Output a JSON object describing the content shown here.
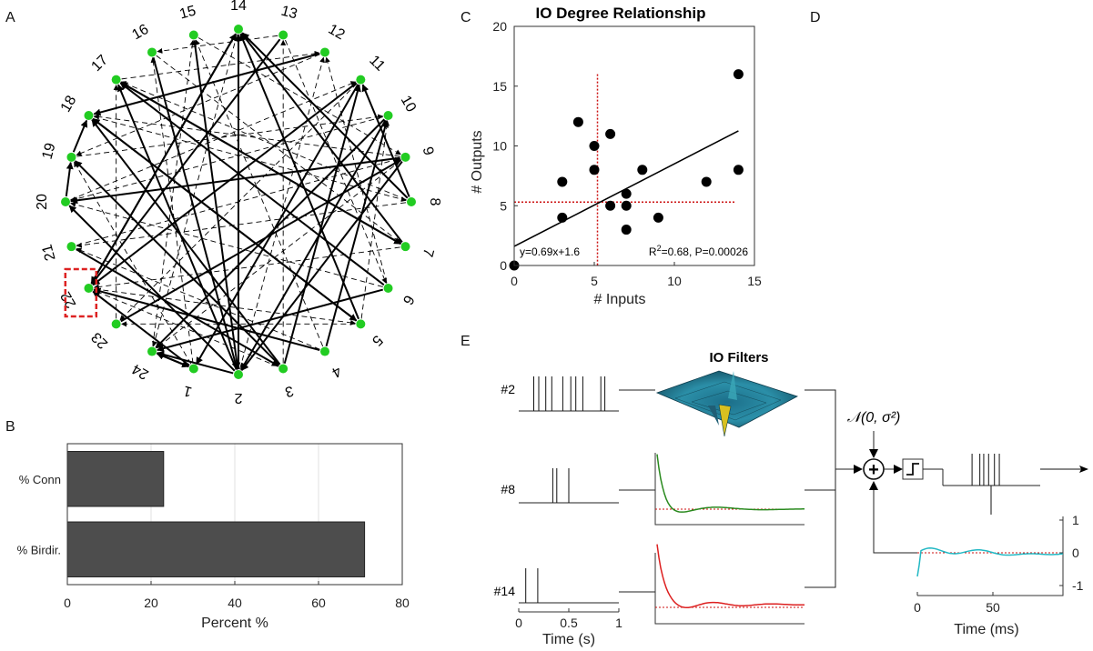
{
  "panels": {
    "a": "A",
    "b": "B",
    "c": "C",
    "d": "D",
    "e": "E"
  },
  "network": {
    "node_labels": [
      "1",
      "2",
      "3",
      "4",
      "5",
      "6",
      "7",
      "8",
      "9",
      "10",
      "11",
      "12",
      "13",
      "14",
      "15",
      "16",
      "17",
      "18",
      "19",
      "20",
      "21",
      "22",
      "23",
      "24"
    ],
    "node_color": "#22cc22",
    "highlight_node": "22",
    "highlight_color": "#dd2222",
    "strong_edges": [
      [
        1,
        22
      ],
      [
        1,
        24
      ],
      [
        2,
        24
      ],
      [
        2,
        20
      ],
      [
        2,
        17
      ],
      [
        2,
        14
      ],
      [
        3,
        19
      ],
      [
        3,
        18
      ],
      [
        3,
        11
      ],
      [
        4,
        22
      ],
      [
        4,
        10
      ],
      [
        5,
        18
      ],
      [
        5,
        14
      ],
      [
        6,
        17
      ],
      [
        6,
        24
      ],
      [
        7,
        17
      ],
      [
        7,
        14
      ],
      [
        8,
        11
      ],
      [
        8,
        14
      ],
      [
        9,
        20
      ],
      [
        9,
        2
      ],
      [
        10,
        2
      ],
      [
        10,
        24
      ],
      [
        11,
        1
      ],
      [
        11,
        22
      ],
      [
        12,
        18
      ],
      [
        13,
        22
      ],
      [
        14,
        22
      ],
      [
        15,
        2
      ],
      [
        16,
        2
      ],
      [
        17,
        7
      ],
      [
        18,
        5
      ],
      [
        19,
        18
      ],
      [
        20,
        19
      ],
      [
        21,
        3
      ],
      [
        22,
        14
      ],
      [
        23,
        9
      ],
      [
        24,
        1
      ]
    ],
    "weak_edges": [
      [
        1,
        19
      ],
      [
        1,
        16
      ],
      [
        2,
        12
      ],
      [
        3,
        22
      ],
      [
        3,
        13
      ],
      [
        4,
        21
      ],
      [
        4,
        15
      ],
      [
        5,
        23
      ],
      [
        5,
        10
      ],
      [
        6,
        20
      ],
      [
        6,
        12
      ],
      [
        7,
        22
      ],
      [
        8,
        21
      ],
      [
        8,
        17
      ],
      [
        9,
        18
      ],
      [
        9,
        24
      ],
      [
        10,
        20
      ],
      [
        11,
        23
      ],
      [
        12,
        19
      ],
      [
        13,
        16
      ],
      [
        13,
        6
      ],
      [
        14,
        24
      ],
      [
        15,
        9
      ],
      [
        16,
        7
      ],
      [
        17,
        12
      ],
      [
        19,
        10
      ],
      [
        20,
        11
      ],
      [
        21,
        9
      ],
      [
        22,
        5
      ],
      [
        23,
        17
      ],
      [
        24,
        15
      ],
      [
        18,
        8
      ]
    ]
  },
  "chart_data": [
    {
      "type": "bar",
      "orientation": "horizontal",
      "categories": [
        "% Conn",
        "% Birdir."
      ],
      "values": [
        23,
        71
      ],
      "xlabel": "Percent %",
      "xlim": [
        0,
        80
      ],
      "xticks": [
        "0",
        "20",
        "40",
        "60",
        "80"
      ],
      "bar_color": "#4d4d4d",
      "grid": true
    },
    {
      "type": "scatter",
      "title": "IO Degree Relationship",
      "xlabel": "# Inputs",
      "ylabel": "# Outputs",
      "xlim": [
        0,
        15
      ],
      "ylim": [
        0,
        20
      ],
      "xticks": [
        "0",
        "5",
        "10",
        "15"
      ],
      "yticks": [
        "0",
        "5",
        "10",
        "15",
        "20"
      ],
      "points": [
        [
          0,
          0
        ],
        [
          3,
          7
        ],
        [
          3,
          4
        ],
        [
          4,
          12
        ],
        [
          5,
          10
        ],
        [
          5,
          8
        ],
        [
          6,
          11
        ],
        [
          6,
          5
        ],
        [
          7,
          6
        ],
        [
          7,
          5
        ],
        [
          7,
          3
        ],
        [
          8,
          8
        ],
        [
          9,
          4
        ],
        [
          12,
          7
        ],
        [
          14,
          16
        ],
        [
          14,
          8
        ]
      ],
      "fit": {
        "slope": 0.69,
        "intercept": 1.6,
        "x_range": [
          0,
          14
        ]
      },
      "mean_x": 5.2,
      "mean_y": 5.3,
      "fit_label": "y=0.69x+1.6",
      "stats_label_r": "R",
      "stats_label_sup": "2",
      "stats_label_rest": "=0.68, P=0.00026",
      "ref_color": "#cc1111"
    }
  ],
  "model": {
    "title": "IO Filters",
    "inputs": [
      {
        "label": "#2",
        "spikes": [
          0.15,
          0.2,
          0.27,
          0.33,
          0.44,
          0.52,
          0.57,
          0.64,
          0.82,
          0.86
        ]
      },
      {
        "label": "#8",
        "spikes": [
          0.34,
          0.38,
          0.5
        ]
      },
      {
        "label": "#14",
        "spikes": [
          0.07,
          0.19
        ]
      }
    ],
    "spike_xlabel": "Time (s)",
    "spike_xticks": [
      "0",
      "0.5",
      "1"
    ],
    "filter_colors": [
      "#2a8a1f",
      "#dd2020"
    ],
    "noise_label": "𝒩(0, σ²)",
    "sum_symbol": "+",
    "output_spikes": [
      0.3,
      0.38,
      0.42,
      0.47,
      0.53,
      0.58
    ],
    "history_xlabel": "Time (ms)",
    "history_xticks": [
      "0",
      "50"
    ],
    "history_yticks": [
      "1",
      "0",
      "-1"
    ],
    "history_color": "#22b8c4"
  }
}
